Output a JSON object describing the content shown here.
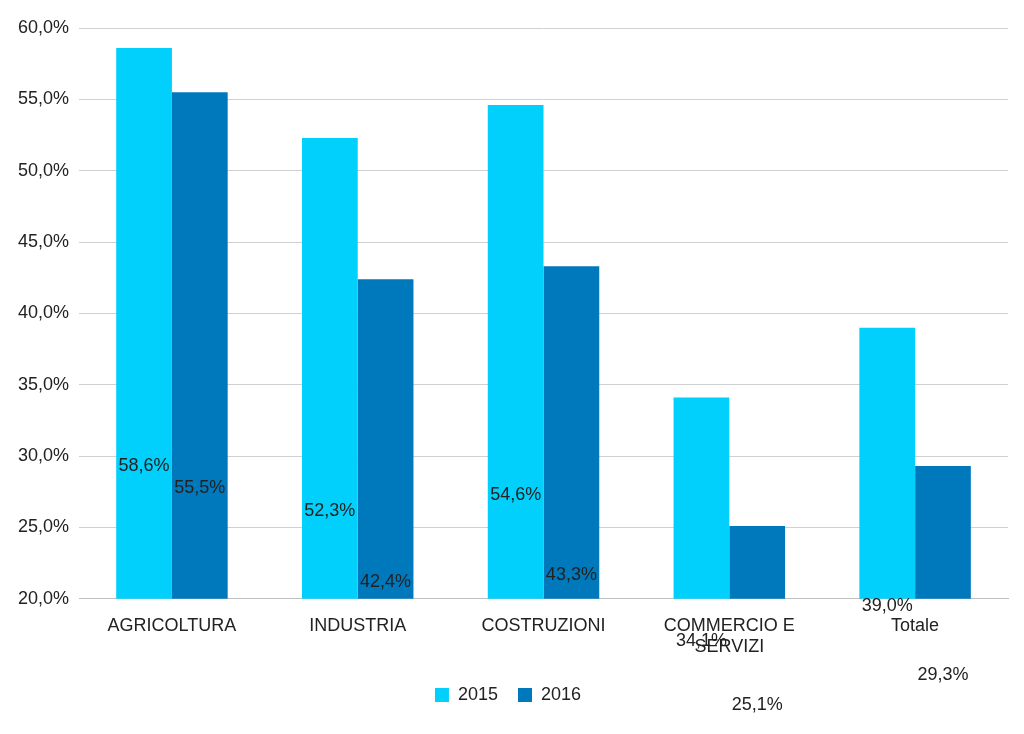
{
  "chart_data": {
    "type": "bar",
    "categories": [
      "AGRICOLTURA",
      "INDUSTRIA",
      "COSTRUZIONI",
      "COMMERCIO E SERVIZI",
      "Totale"
    ],
    "series": [
      {
        "name": "2015",
        "color": "#00d0fb",
        "values": [
          58.6,
          52.3,
          54.6,
          34.1,
          39.0
        ],
        "value_labels": [
          "58,6%",
          "52,3%",
          "54,6%",
          "34,1%",
          "39,0%"
        ]
      },
      {
        "name": "2016",
        "color": "#0079bc",
        "values": [
          55.5,
          42.4,
          43.3,
          25.1,
          29.3
        ],
        "value_labels": [
          "55,5%",
          "42,4%",
          "43,3%",
          "25,1%",
          "29,3%"
        ]
      }
    ],
    "ylim": [
      20,
      60
    ],
    "yticks": [
      {
        "value": 20,
        "label": "20,0%"
      },
      {
        "value": 25,
        "label": "25,0%"
      },
      {
        "value": 30,
        "label": "30,0%"
      },
      {
        "value": 35,
        "label": "35,0%"
      },
      {
        "value": 40,
        "label": "40,0%"
      },
      {
        "value": 45,
        "label": "45,0%"
      },
      {
        "value": 50,
        "label": "50,0%"
      },
      {
        "value": 55,
        "label": "55,0%"
      },
      {
        "value": 60,
        "label": "60,0%"
      }
    ],
    "grid": true,
    "legend": "bottom",
    "data_labels": true
  }
}
